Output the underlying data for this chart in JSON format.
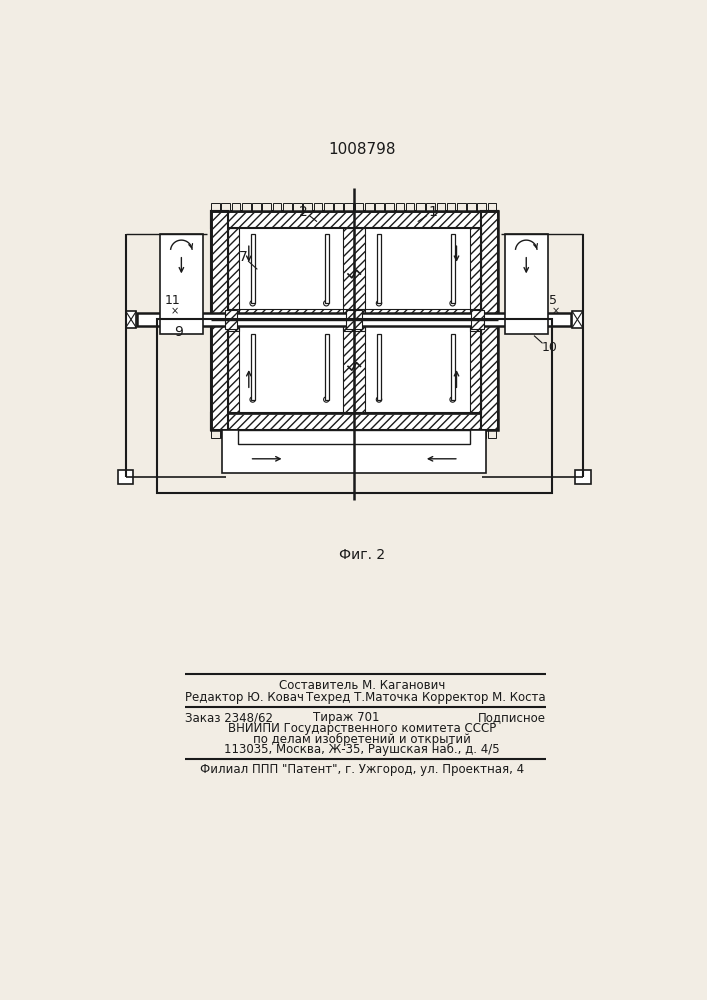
{
  "title": "1008798",
  "fig_label": "Фиг. 2",
  "bg_color": "#f2ede4",
  "line_color": "#1a1a1a",
  "footer": {
    "f1": "Составитель М. Каганович",
    "f2l": "Редактор Ю. Ковач",
    "f2m": "Техред Т.Маточка",
    "f2r": "Корректор М. Коста",
    "f3l": "Заказ 2348/62",
    "f3m": "Тираж 701",
    "f3r": "Подписное",
    "f4": "ВНИИПИ Государственного комитета СССР",
    "f5": "по делам изобретений и открытий",
    "f6": "113035, Москва, Ж-35, Раушская наб., д. 4/5",
    "f7": "Филиал ППП \"Патент\", г. Ужгород, ул. Проектная, 4"
  }
}
